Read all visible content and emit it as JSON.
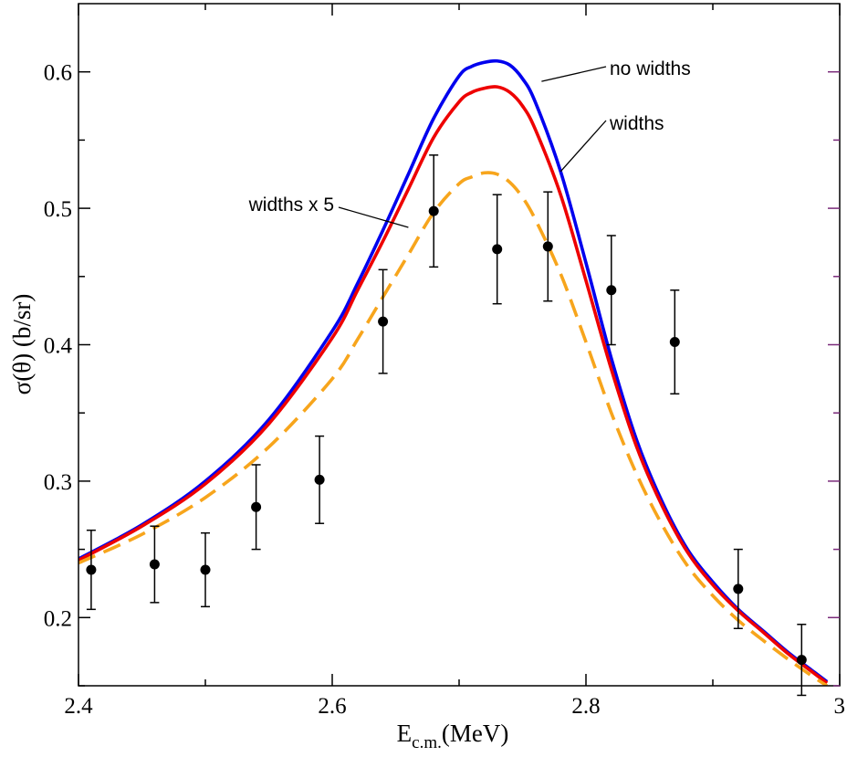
{
  "chart_data": {
    "type": "line",
    "title": "",
    "xlabel": {
      "main": "E",
      "sub": "c.m.",
      "unit": "(MeV)"
    },
    "ylabel": "σ(θ) (b/sr)",
    "xlim": [
      2.4,
      3.0
    ],
    "ylim": [
      0.15,
      0.65
    ],
    "x_ticks": [
      2.4,
      2.6,
      2.8,
      3.0
    ],
    "x_tick_labels": [
      "2.4",
      "2.6",
      "2.8",
      "3"
    ],
    "x_minor_ticks": [
      2.5,
      2.7,
      2.9
    ],
    "y_ticks": [
      0.2,
      0.3,
      0.4,
      0.5,
      0.6
    ],
    "y_tick_labels": [
      "0.2",
      "0.3",
      "0.4",
      "0.5",
      "0.6"
    ],
    "y_minor_ticks": [
      0.15,
      0.25,
      0.35,
      0.45,
      0.55
    ],
    "grid": false,
    "series": [
      {
        "name": "no widths",
        "color": "#0000ee",
        "dash": "solid",
        "x": [
          2.4,
          2.45,
          2.5,
          2.55,
          2.6,
          2.62,
          2.64,
          2.66,
          2.68,
          2.7,
          2.71,
          2.72,
          2.73,
          2.74,
          2.75,
          2.76,
          2.78,
          2.8,
          2.82,
          2.84,
          2.86,
          2.88,
          2.9,
          2.92,
          2.94,
          2.96,
          2.98,
          2.99
        ],
        "y": [
          0.243,
          0.268,
          0.3,
          0.345,
          0.41,
          0.445,
          0.484,
          0.525,
          0.566,
          0.597,
          0.604,
          0.607,
          0.608,
          0.605,
          0.595,
          0.578,
          0.527,
          0.46,
          0.39,
          0.33,
          0.285,
          0.25,
          0.226,
          0.206,
          0.19,
          0.174,
          0.16,
          0.153
        ]
      },
      {
        "name": "widths",
        "color": "#ee0000",
        "dash": "solid",
        "x": [
          2.4,
          2.45,
          2.5,
          2.55,
          2.6,
          2.62,
          2.64,
          2.66,
          2.68,
          2.7,
          2.71,
          2.72,
          2.73,
          2.74,
          2.75,
          2.76,
          2.78,
          2.8,
          2.82,
          2.84,
          2.86,
          2.88,
          2.9,
          2.92,
          2.94,
          2.96,
          2.98,
          2.99
        ],
        "y": [
          0.242,
          0.267,
          0.298,
          0.342,
          0.405,
          0.44,
          0.476,
          0.514,
          0.552,
          0.578,
          0.585,
          0.588,
          0.589,
          0.585,
          0.575,
          0.558,
          0.51,
          0.447,
          0.382,
          0.325,
          0.282,
          0.248,
          0.224,
          0.205,
          0.189,
          0.173,
          0.159,
          0.152
        ]
      },
      {
        "name": "widths x 5",
        "color": "#f7a51c",
        "dash": "dashed",
        "x": [
          2.4,
          2.45,
          2.5,
          2.55,
          2.6,
          2.62,
          2.64,
          2.66,
          2.68,
          2.7,
          2.71,
          2.72,
          2.73,
          2.74,
          2.75,
          2.76,
          2.78,
          2.8,
          2.82,
          2.84,
          2.86,
          2.88,
          2.9,
          2.92,
          2.94,
          2.96,
          2.98,
          2.99
        ],
        "y": [
          0.24,
          0.261,
          0.288,
          0.325,
          0.375,
          0.404,
          0.435,
          0.466,
          0.497,
          0.518,
          0.523,
          0.526,
          0.525,
          0.519,
          0.508,
          0.492,
          0.452,
          0.402,
          0.35,
          0.305,
          0.268,
          0.238,
          0.216,
          0.198,
          0.183,
          0.169,
          0.156,
          0.15
        ]
      }
    ],
    "data_points": {
      "name": "data",
      "color": "#000000",
      "x": [
        2.41,
        2.46,
        2.5,
        2.54,
        2.59,
        2.64,
        2.68,
        2.73,
        2.77,
        2.82,
        2.87,
        2.92,
        2.97
      ],
      "y": [
        0.235,
        0.239,
        0.235,
        0.281,
        0.301,
        0.417,
        0.498,
        0.47,
        0.472,
        0.44,
        0.402,
        0.221,
        0.169
      ],
      "err": [
        0.029,
        0.028,
        0.027,
        0.031,
        0.032,
        0.038,
        0.041,
        0.04,
        0.04,
        0.04,
        0.038,
        0.029,
        0.026
      ]
    },
    "annotations": [
      {
        "text": "no widths",
        "target_series": "no widths"
      },
      {
        "text": "widths",
        "target_series": "widths"
      },
      {
        "text": "widths x 5",
        "target_series": "widths x 5"
      }
    ]
  }
}
